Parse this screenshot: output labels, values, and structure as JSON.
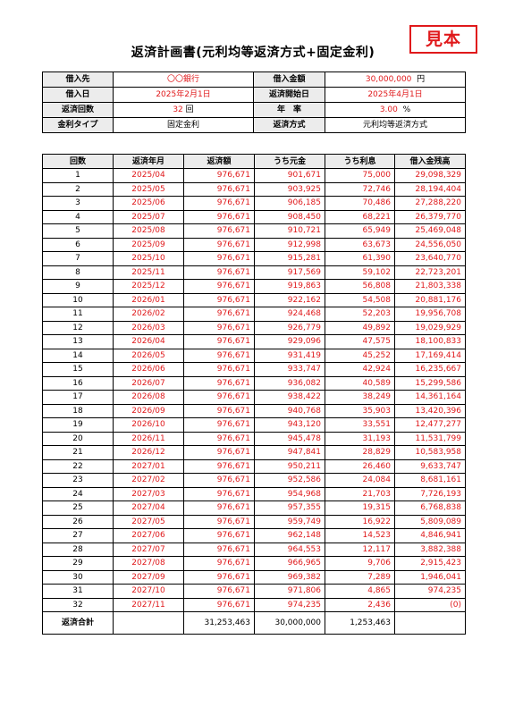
{
  "stamp": "見本",
  "title": "返済計画書(元利均等返済方式+固定金利)",
  "info": {
    "rows": [
      {
        "l1": "借入先",
        "v1": "〇〇銀行",
        "l2": "借入金額",
        "v2": "30,000,000",
        "u2": "円"
      },
      {
        "l1": "借入日",
        "v1": "2025年2月1日",
        "l2": "返済開始日",
        "v2": "2025年4月1日",
        "u2": ""
      },
      {
        "l1": "返済回数",
        "v1": "32",
        "u1": "回",
        "l2": "年　率",
        "v2": "3.00",
        "u2": "%"
      },
      {
        "l1": "金利タイプ",
        "v1": "固定金利",
        "l2": "返済方式",
        "v2": "元利均等返済方式",
        "u2": ""
      }
    ]
  },
  "schedule": {
    "headers": [
      "回数",
      "返済年月",
      "返済額",
      "うち元金",
      "うち利息",
      "借入金残高"
    ],
    "rows": [
      [
        "1",
        "2025/04",
        "976,671",
        "901,671",
        "75,000",
        "29,098,329"
      ],
      [
        "2",
        "2025/05",
        "976,671",
        "903,925",
        "72,746",
        "28,194,404"
      ],
      [
        "3",
        "2025/06",
        "976,671",
        "906,185",
        "70,486",
        "27,288,220"
      ],
      [
        "4",
        "2025/07",
        "976,671",
        "908,450",
        "68,221",
        "26,379,770"
      ],
      [
        "5",
        "2025/08",
        "976,671",
        "910,721",
        "65,949",
        "25,469,048"
      ],
      [
        "6",
        "2025/09",
        "976,671",
        "912,998",
        "63,673",
        "24,556,050"
      ],
      [
        "7",
        "2025/10",
        "976,671",
        "915,281",
        "61,390",
        "23,640,770"
      ],
      [
        "8",
        "2025/11",
        "976,671",
        "917,569",
        "59,102",
        "22,723,201"
      ],
      [
        "9",
        "2025/12",
        "976,671",
        "919,863",
        "56,808",
        "21,803,338"
      ],
      [
        "10",
        "2026/01",
        "976,671",
        "922,162",
        "54,508",
        "20,881,176"
      ],
      [
        "11",
        "2026/02",
        "976,671",
        "924,468",
        "52,203",
        "19,956,708"
      ],
      [
        "12",
        "2026/03",
        "976,671",
        "926,779",
        "49,892",
        "19,029,929"
      ],
      [
        "13",
        "2026/04",
        "976,671",
        "929,096",
        "47,575",
        "18,100,833"
      ],
      [
        "14",
        "2026/05",
        "976,671",
        "931,419",
        "45,252",
        "17,169,414"
      ],
      [
        "15",
        "2026/06",
        "976,671",
        "933,747",
        "42,924",
        "16,235,667"
      ],
      [
        "16",
        "2026/07",
        "976,671",
        "936,082",
        "40,589",
        "15,299,586"
      ],
      [
        "17",
        "2026/08",
        "976,671",
        "938,422",
        "38,249",
        "14,361,164"
      ],
      [
        "18",
        "2026/09",
        "976,671",
        "940,768",
        "35,903",
        "13,420,396"
      ],
      [
        "19",
        "2026/10",
        "976,671",
        "943,120",
        "33,551",
        "12,477,277"
      ],
      [
        "20",
        "2026/11",
        "976,671",
        "945,478",
        "31,193",
        "11,531,799"
      ],
      [
        "21",
        "2026/12",
        "976,671",
        "947,841",
        "28,829",
        "10,583,958"
      ],
      [
        "22",
        "2027/01",
        "976,671",
        "950,211",
        "26,460",
        "9,633,747"
      ],
      [
        "23",
        "2027/02",
        "976,671",
        "952,586",
        "24,084",
        "8,681,161"
      ],
      [
        "24",
        "2027/03",
        "976,671",
        "954,968",
        "21,703",
        "7,726,193"
      ],
      [
        "25",
        "2027/04",
        "976,671",
        "957,355",
        "19,315",
        "6,768,838"
      ],
      [
        "26",
        "2027/05",
        "976,671",
        "959,749",
        "16,922",
        "5,809,089"
      ],
      [
        "27",
        "2027/06",
        "976,671",
        "962,148",
        "14,523",
        "4,846,941"
      ],
      [
        "28",
        "2027/07",
        "976,671",
        "964,553",
        "12,117",
        "3,882,388"
      ],
      [
        "29",
        "2027/08",
        "976,671",
        "966,965",
        "9,706",
        "2,915,423"
      ],
      [
        "30",
        "2027/09",
        "976,671",
        "969,382",
        "7,289",
        "1,946,041"
      ],
      [
        "31",
        "2027/10",
        "976,671",
        "971,806",
        "4,865",
        "974,235"
      ],
      [
        "32",
        "2027/11",
        "976,671",
        "974,235",
        "2,436",
        "(0)"
      ]
    ],
    "total": {
      "label": "返済合計",
      "payment": "31,253,463",
      "principal": "30,000,000",
      "interest": "1,253,463"
    }
  },
  "colors": {
    "accent_red": "#e0191b",
    "header_bg": "#ececec"
  }
}
